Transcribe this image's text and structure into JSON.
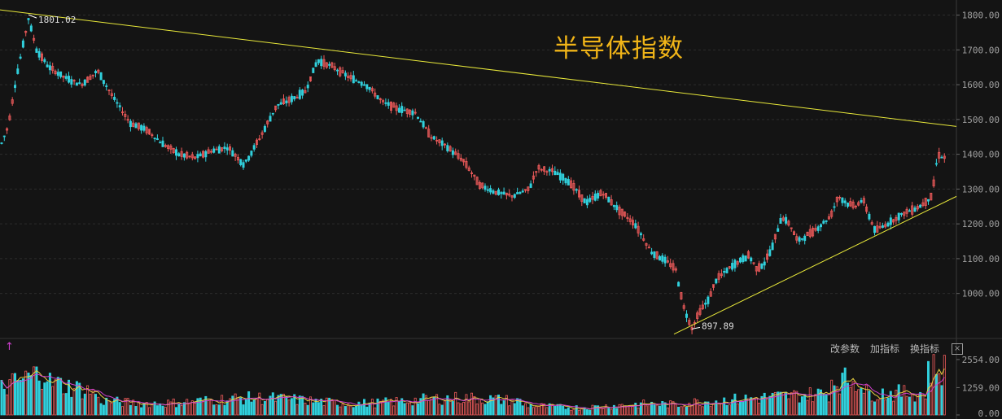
{
  "title": "半导体指数",
  "toolbar": {
    "modify_params": "改参数",
    "add_indicator": "加指标",
    "switch_indicator": "换指标",
    "close": "×"
  },
  "colors": {
    "background": "#141414",
    "up": "#ee5a5a",
    "down": "#31d0dc",
    "trendline": "#e8e83a",
    "title": "#f0b418",
    "axis_text": "#a0a0a0",
    "ma_fast": "#f0f0f0",
    "ma_slow": "#e8d040",
    "ma_vol": "#d040d0"
  },
  "chart_data": [
    {
      "type": "candlestick",
      "ylim": [
        880,
        1820
      ],
      "y_ticks": [
        "1800.00",
        "1700.00",
        "1600.00",
        "1500.00",
        "1400.00",
        "1300.00",
        "1200.00",
        "1100.00",
        "1000.00"
      ],
      "annotations": [
        {
          "text": "1801.02",
          "index": 35
        },
        {
          "text": "897.89",
          "index": 850
        }
      ],
      "trendlines": [
        {
          "from": [
            0,
            1815
          ],
          "to": [
            1175,
            1480
          ]
        },
        {
          "from": [
            828,
            883
          ],
          "to": [
            1175,
            1279
          ]
        }
      ],
      "keypoints": [
        [
          0,
          1420
        ],
        [
          10,
          1480
        ],
        [
          20,
          1620
        ],
        [
          35,
          1790
        ],
        [
          45,
          1700
        ],
        [
          60,
          1650
        ],
        [
          80,
          1620
        ],
        [
          100,
          1600
        ],
        [
          120,
          1640
        ],
        [
          140,
          1560
        ],
        [
          160,
          1490
        ],
        [
          180,
          1470
        ],
        [
          200,
          1430
        ],
        [
          220,
          1400
        ],
        [
          240,
          1390
        ],
        [
          260,
          1410
        ],
        [
          280,
          1420
        ],
        [
          300,
          1370
        ],
        [
          320,
          1450
        ],
        [
          340,
          1540
        ],
        [
          360,
          1560
        ],
        [
          375,
          1580
        ],
        [
          390,
          1670
        ],
        [
          410,
          1650
        ],
        [
          430,
          1620
        ],
        [
          450,
          1600
        ],
        [
          470,
          1550
        ],
        [
          490,
          1530
        ],
        [
          510,
          1520
        ],
        [
          530,
          1450
        ],
        [
          550,
          1420
        ],
        [
          570,
          1380
        ],
        [
          590,
          1310
        ],
        [
          610,
          1290
        ],
        [
          630,
          1280
        ],
        [
          650,
          1300
        ],
        [
          660,
          1360
        ],
        [
          680,
          1350
        ],
        [
          700,
          1320
        ],
        [
          720,
          1260
        ],
        [
          740,
          1290
        ],
        [
          760,
          1240
        ],
        [
          780,
          1200
        ],
        [
          800,
          1120
        ],
        [
          820,
          1090
        ],
        [
          830,
          1070
        ],
        [
          840,
          960
        ],
        [
          850,
          900
        ],
        [
          860,
          950
        ],
        [
          870,
          980
        ],
        [
          880,
          1040
        ],
        [
          900,
          1080
        ],
        [
          920,
          1110
        ],
        [
          930,
          1070
        ],
        [
          940,
          1090
        ],
        [
          950,
          1140
        ],
        [
          960,
          1220
        ],
        [
          970,
          1200
        ],
        [
          980,
          1150
        ],
        [
          1000,
          1180
        ],
        [
          1020,
          1220
        ],
        [
          1030,
          1280
        ],
        [
          1040,
          1260
        ],
        [
          1050,
          1250
        ],
        [
          1060,
          1270
        ],
        [
          1075,
          1180
        ],
        [
          1090,
          1200
        ],
        [
          1110,
          1230
        ],
        [
          1130,
          1250
        ],
        [
          1145,
          1280
        ],
        [
          1152,
          1400
        ],
        [
          1160,
          1390
        ]
      ]
    },
    {
      "type": "bar",
      "name": "volume",
      "ylim": [
        0,
        2700
      ],
      "y_ticks": [
        "2554.00",
        "1259.00",
        "0.00"
      ]
    }
  ]
}
